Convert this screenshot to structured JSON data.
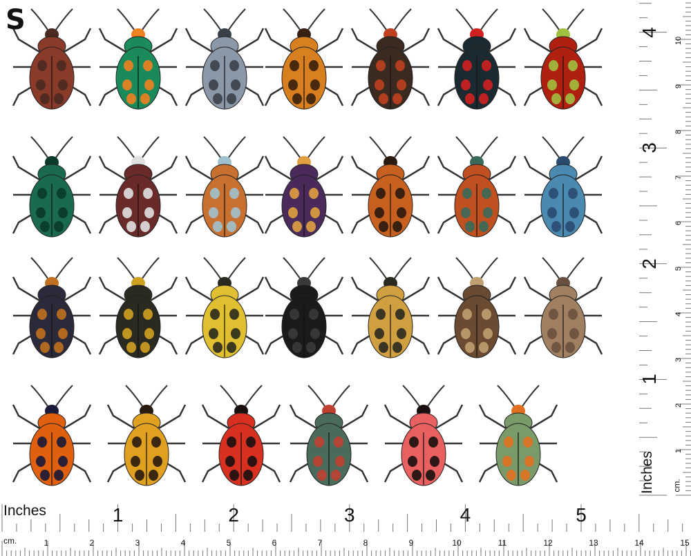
{
  "sheet_letter": "S",
  "bottom_ruler": {
    "inch_label": "Inches",
    "cm_label": "cm.",
    "inch_numbers": [
      "1",
      "2",
      "3",
      "4",
      "5"
    ],
    "cm_numbers": [
      "1",
      "2",
      "3",
      "4",
      "5",
      "6",
      "7",
      "8",
      "9",
      "10",
      "11",
      "12",
      "13",
      "14",
      "15"
    ]
  },
  "side_ruler": {
    "inch_label": "Inches",
    "cm_label": "cm.",
    "inch_numbers": [
      "1",
      "2",
      "3",
      "4"
    ],
    "cm_numbers": [
      "1",
      "2",
      "3",
      "4",
      "5",
      "6",
      "7",
      "8",
      "9",
      "10"
    ]
  },
  "beetles": [
    [
      {
        "body": "#8a3a28",
        "accent": "#4a2a20"
      },
      {
        "body": "#1a8a5a",
        "accent": "#f08020"
      },
      {
        "body": "#8a98a8",
        "accent": "#3a4048"
      },
      {
        "body": "#d88020",
        "accent": "#3a2010"
      },
      {
        "body": "#3a2a20",
        "accent": "#c04020"
      },
      {
        "body": "#1a2a30",
        "accent": "#d02020"
      },
      {
        "body": "#b02010",
        "accent": "#a0c040"
      }
    ],
    [
      {
        "body": "#1a6a50",
        "accent": "#0a3a2a"
      },
      {
        "body": "#6a2a2a",
        "accent": "#e0e0e0"
      },
      {
        "body": "#c87030",
        "accent": "#a0c0d0"
      },
      {
        "body": "#4a2a5a",
        "accent": "#e0a040"
      },
      {
        "body": "#c86020",
        "accent": "#2a1a10"
      },
      {
        "body": "#c05020",
        "accent": "#3a6a5a"
      },
      {
        "body": "#4a8ab0",
        "accent": "#2a4a70"
      }
    ],
    [
      {
        "body": "#2a2a3a",
        "accent": "#c07020"
      },
      {
        "body": "#2a2a20",
        "accent": "#d0a020"
      },
      {
        "body": "#e0c030",
        "accent": "#2a2a20"
      },
      {
        "body": "#1a1a1a",
        "accent": "#3a3a3a"
      },
      {
        "body": "#d0a040",
        "accent": "#2a2a20"
      },
      {
        "body": "#6a4a30",
        "accent": "#c0a070"
      },
      {
        "body": "#a08060",
        "accent": "#6a5040"
      }
    ],
    [
      {
        "body": "#e06010",
        "accent": "#1a1a3a"
      },
      {
        "body": "#e0a020",
        "accent": "#2a1a10"
      },
      {
        "body": "#d83020",
        "accent": "#1a1010"
      },
      {
        "body": "#4a6a5a",
        "accent": "#c04030"
      },
      {
        "body": "#e86060",
        "accent": "#1a1010"
      },
      {
        "body": "#7a9a6a",
        "accent": "#e07020"
      }
    ]
  ]
}
